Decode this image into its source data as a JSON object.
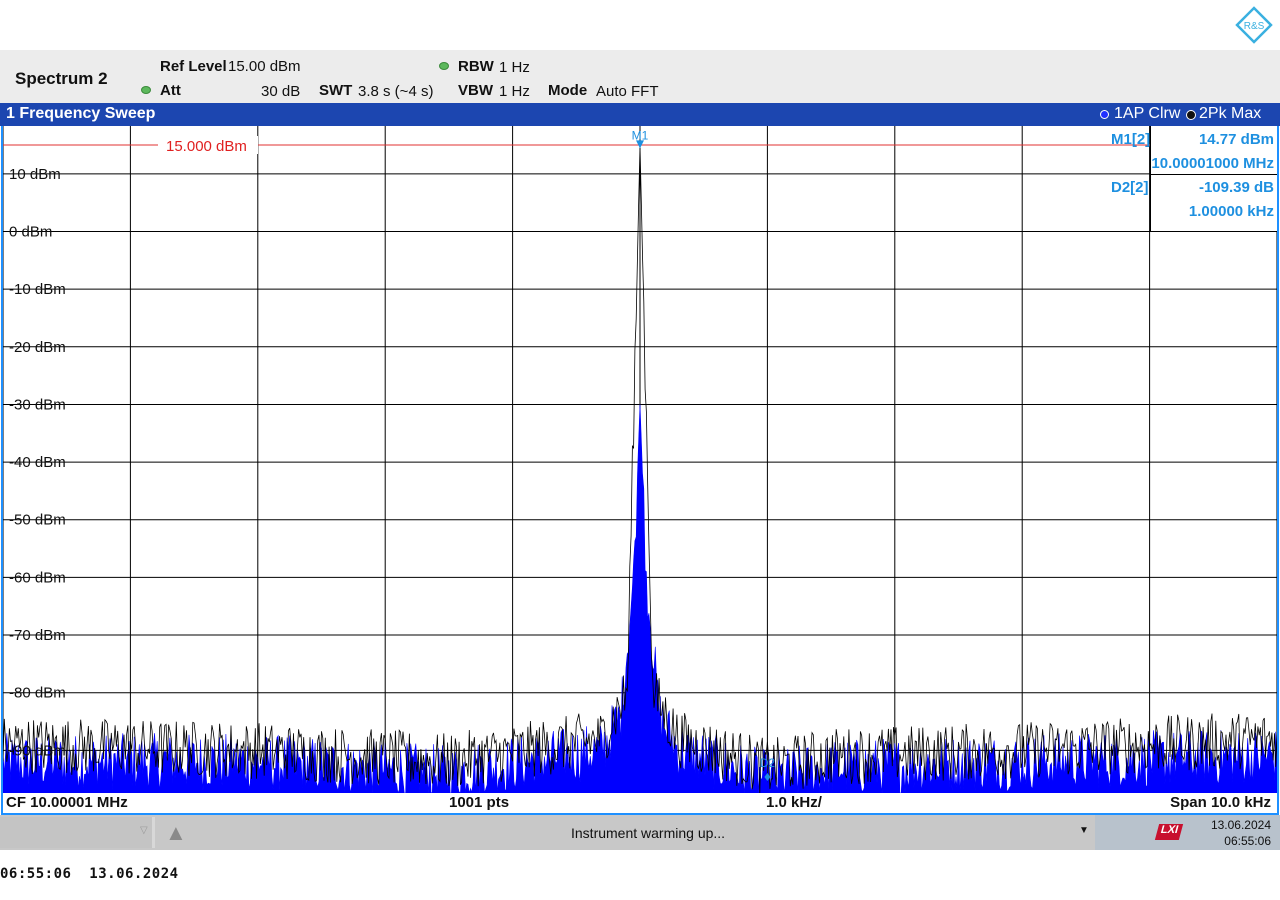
{
  "header": {
    "title": "Spectrum 2",
    "ref_level_label": "Ref Level",
    "ref_level_value": "15.00 dBm",
    "att_label": "Att",
    "att_value": "30 dB",
    "swt_label": "SWT",
    "swt_value": "3.8 s (~4 s)",
    "rbw_label": "RBW",
    "rbw_value": "1 Hz",
    "vbw_label": "VBW",
    "vbw_value": "1 Hz",
    "mode_label": "Mode",
    "mode_value": "Auto FFT",
    "logo_text": "R&S"
  },
  "window": {
    "title": "1 Frequency Sweep",
    "trace1_label": "1AP Clrw",
    "trace2_label": "2Pk Max"
  },
  "markers": {
    "m1_label": "M1[2]",
    "m1_level": "14.77 dBm",
    "m1_freq": "10.00001000 MHz",
    "d2_label": "D2[2]",
    "d2_level": "-109.39 dB",
    "d2_freq": "1.00000 kHz",
    "m1_tag": "M1",
    "d2_tag": "D2"
  },
  "footer": {
    "cf": "CF 10.00001 MHz",
    "pts": "1001 pts",
    "div": "1.0 kHz/",
    "span": "Span 10.0 kHz"
  },
  "status": {
    "message": "Instrument warming up...",
    "date": "13.06.2024",
    "time": "06:55:06"
  },
  "timestamp": "06:55:06  13.06.2024",
  "colors": {
    "title_bar": "#1c46b0",
    "trace1": "#0000ff",
    "trace2": "#000000",
    "ref_line": "#e03030",
    "marker": "#1e90e0",
    "border": "#1e90ff"
  },
  "chart_data": {
    "type": "line",
    "xlabel": "",
    "ylabel": "",
    "ref_level_label": "15.000 dBm",
    "ref_level": 15,
    "xlim_mhz": [
      9.99501,
      10.00501
    ],
    "ylim_dbm": [
      -97.4,
      18.3
    ],
    "y_ticks": [
      "10 dBm",
      "0 dBm",
      "-10 dBm",
      "-20 dBm",
      "-30 dBm",
      "-40 dBm",
      "-50 dBm",
      "-60 dBm",
      "-70 dBm",
      "-80 dBm",
      "-90 dBm"
    ],
    "y_tick_values": [
      10,
      0,
      -10,
      -20,
      -30,
      -40,
      -50,
      -60,
      -70,
      -80,
      -90
    ],
    "grid": true,
    "series": [
      {
        "name": "1AP Clrw",
        "style": "filled",
        "points_khz_offset_dbm": [
          [
            -5,
            -92
          ],
          [
            -3,
            -92
          ],
          [
            -1.5,
            -94
          ],
          [
            -0.3,
            -90
          ],
          [
            -0.15,
            -84
          ],
          [
            -0.05,
            -60
          ],
          [
            0,
            -30
          ],
          [
            0.05,
            -60
          ],
          [
            0.15,
            -84
          ],
          [
            0.3,
            -90
          ],
          [
            1,
            -95
          ],
          [
            1.5,
            -93
          ],
          [
            3,
            -92
          ],
          [
            5,
            -91
          ]
        ]
      },
      {
        "name": "2Pk Max",
        "style": "line",
        "points_khz_offset_dbm": [
          [
            -5,
            -89
          ],
          [
            -3,
            -90
          ],
          [
            -1.5,
            -92
          ],
          [
            -0.3,
            -88
          ],
          [
            -0.1,
            -80
          ],
          [
            0,
            14.77
          ],
          [
            0.1,
            -80
          ],
          [
            0.3,
            -88
          ],
          [
            1,
            -93
          ],
          [
            1.5,
            -91
          ],
          [
            3,
            -90
          ],
          [
            5,
            -88
          ]
        ]
      }
    ],
    "marker_points": [
      {
        "name": "M1",
        "x_mhz": 10.00001,
        "y_dbm": 14.77
      },
      {
        "name": "D2",
        "x_khz_offset": 1.0,
        "delta_db": -109.39
      }
    ]
  }
}
